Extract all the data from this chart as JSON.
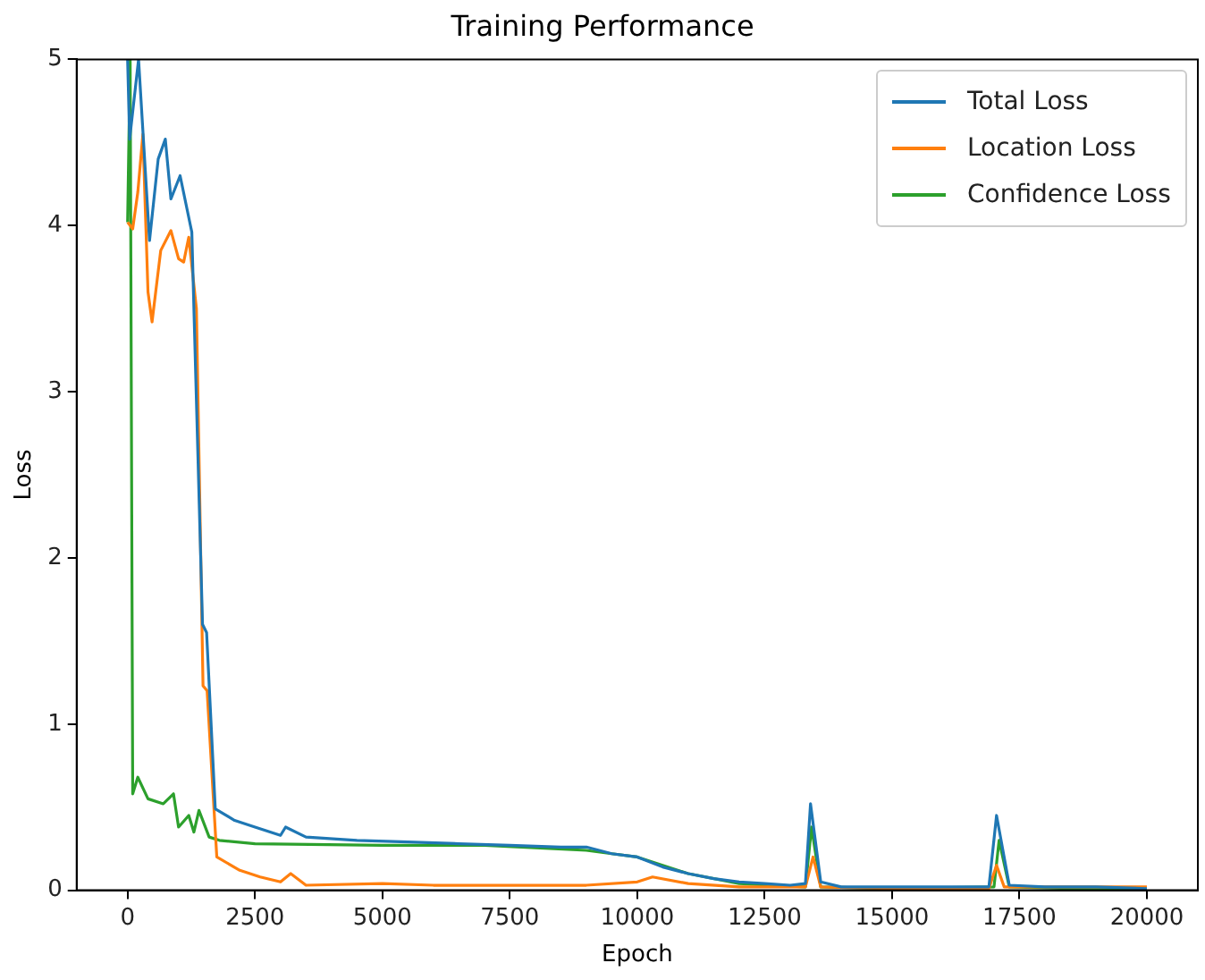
{
  "chart_data": {
    "type": "line",
    "title": "Training Performance",
    "xlabel": "Epoch",
    "ylabel": "Loss",
    "xlim": [
      -1000,
      21000
    ],
    "xticks": [
      0,
      2500,
      5000,
      7500,
      10000,
      12500,
      15000,
      17500,
      20000
    ],
    "ylim": [
      0,
      5
    ],
    "yticks": [
      0,
      1,
      2,
      3,
      4,
      5
    ],
    "grid": false,
    "legend": "top right",
    "marker": "none",
    "line_style": "solid",
    "series": [
      {
        "name": "Total Loss",
        "color": "#1f77b4",
        "x": [
          0,
          40,
          215,
          430,
          600,
          740,
          850,
          1030,
          1260,
          1470,
          1550,
          1720,
          2100,
          2500,
          3000,
          3100,
          3500,
          4500,
          5500,
          6500,
          7500,
          8500,
          9000,
          9500,
          10000,
          10500,
          11000,
          11500,
          12000,
          12500,
          13000,
          13300,
          13400,
          13600,
          14000,
          15000,
          16000,
          16900,
          17050,
          17300,
          18000,
          19000,
          20000
        ],
        "values": [
          5,
          4.52,
          5,
          3.91,
          4.4,
          4.52,
          4.16,
          4.3,
          3.96,
          1.6,
          1.55,
          0.49,
          0.42,
          0.38,
          0.33,
          0.38,
          0.32,
          0.3,
          0.29,
          0.28,
          0.27,
          0.26,
          0.26,
          0.22,
          0.2,
          0.14,
          0.1,
          0.07,
          0.05,
          0.04,
          0.03,
          0.04,
          0.52,
          0.05,
          0.02,
          0.02,
          0.02,
          0.02,
          0.45,
          0.03,
          0.02,
          0.02,
          0.01
        ]
      },
      {
        "name": "Location Loss",
        "color": "#ff7f0e",
        "x": [
          0,
          100,
          200,
          300,
          400,
          480,
          650,
          850,
          1000,
          1100,
          1200,
          1350,
          1480,
          1560,
          1750,
          2200,
          2600,
          3000,
          3200,
          3500,
          5000,
          6000,
          7500,
          9000,
          10000,
          10300,
          11000,
          12000,
          13300,
          13450,
          13600,
          15000,
          16900,
          17050,
          17200,
          20000
        ],
        "values": [
          4.02,
          3.98,
          4.2,
          4.55,
          3.6,
          3.42,
          3.85,
          3.97,
          3.8,
          3.78,
          3.93,
          3.5,
          1.23,
          1.2,
          0.2,
          0.12,
          0.08,
          0.05,
          0.1,
          0.03,
          0.04,
          0.03,
          0.03,
          0.03,
          0.05,
          0.08,
          0.04,
          0.02,
          0.02,
          0.2,
          0.02,
          0.01,
          0.01,
          0.15,
          0.02,
          0.02
        ]
      },
      {
        "name": "Confidence Loss",
        "color": "#2ca02c",
        "x": [
          0,
          50,
          100,
          200,
          400,
          700,
          900,
          1000,
          1200,
          1300,
          1400,
          1600,
          1800,
          2500,
          5000,
          7000,
          9000,
          9500,
          10000,
          11000,
          12000,
          13300,
          13420,
          13600,
          15000,
          17000,
          17100,
          17300,
          18500,
          20000
        ],
        "values": [
          4.02,
          5,
          0.58,
          0.68,
          0.55,
          0.52,
          0.58,
          0.38,
          0.45,
          0.35,
          0.48,
          0.32,
          0.3,
          0.28,
          0.27,
          0.27,
          0.24,
          0.22,
          0.2,
          0.1,
          0.04,
          0.02,
          0.38,
          0.02,
          0.01,
          0.02,
          0.3,
          0.02,
          0.01,
          0.01
        ]
      }
    ]
  }
}
